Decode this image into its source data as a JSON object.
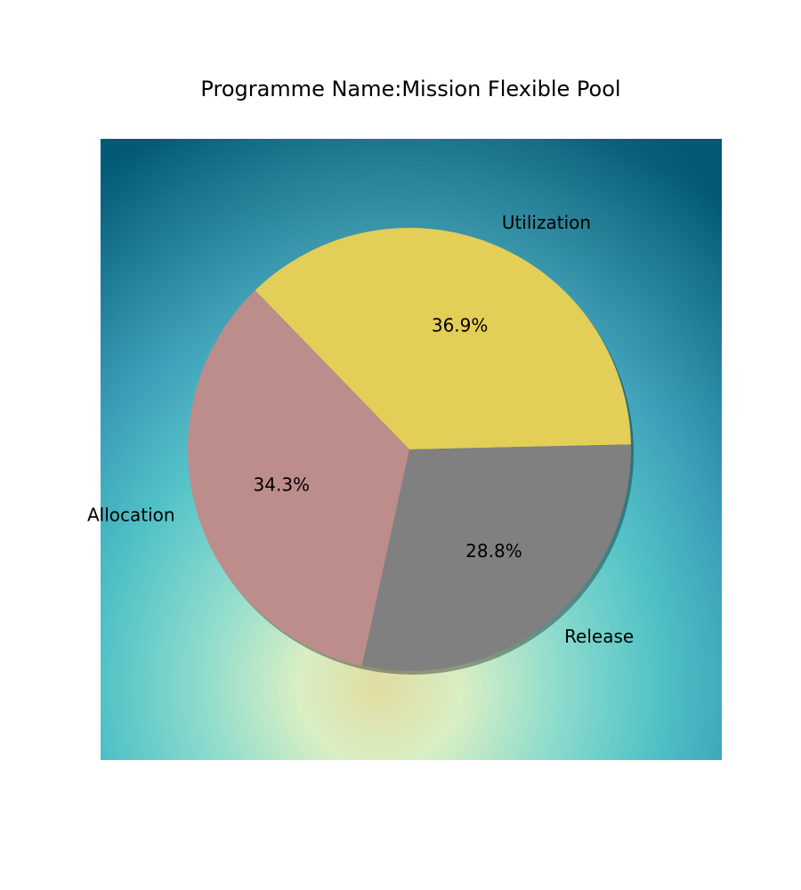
{
  "chart_data": {
    "type": "pie",
    "title": "Programme Name:Mission Flexible Pool",
    "start_angle_deg": 1.3,
    "direction": "counterclockwise",
    "shadow": true,
    "slices": [
      {
        "label": "Utilization",
        "percent": 36.9,
        "pct_text": "36.9%",
        "color": "#e3ce58"
      },
      {
        "label": "Allocation",
        "percent": 34.3,
        "pct_text": "34.3%",
        "color": "#bc8d8a"
      },
      {
        "label": "Release",
        "percent": 28.8,
        "pct_text": "28.8%",
        "color": "#808080"
      }
    ],
    "background": "radial gradient: pale yellow-green at bottom fading to teal/dark blue at edges"
  }
}
